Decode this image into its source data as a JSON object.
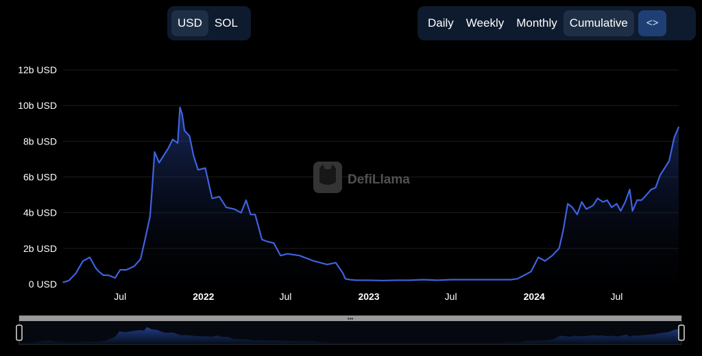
{
  "currency_toggle": {
    "options": [
      "USD",
      "SOL"
    ],
    "selected": "USD"
  },
  "interval_toggle": {
    "options": [
      "Daily",
      "Weekly",
      "Monthly",
      "Cumulative"
    ],
    "selected": "Cumulative",
    "embed_icon": "code-icon",
    "embed_label": "<>"
  },
  "watermark": {
    "text": "DefiLlama",
    "icon": "llama-logo-icon"
  },
  "colors": {
    "line": "#3f63e0",
    "accent": "#1f3f74",
    "background": "#000000"
  },
  "chart_data": {
    "type": "area",
    "ylim": [
      0,
      12
    ],
    "y_unit": "b USD",
    "y_tick_values": [
      0,
      2,
      4,
      6,
      8,
      10,
      12
    ],
    "y_tick_labels": [
      "0 USD",
      "2b USD",
      "4b USD",
      "6b USD",
      "8b USD",
      "10b USD",
      "12b USD"
    ],
    "x_tick_labels": [
      "Jul",
      "2022",
      "Jul",
      "2023",
      "Jul",
      "2024",
      "Jul"
    ],
    "x_tick_dates": [
      "2021-07-01",
      "2022-01-01",
      "2022-07-01",
      "2023-01-01",
      "2023-07-01",
      "2024-01-01",
      "2024-07-01"
    ],
    "x_bold_ticks": [
      "2022",
      "2023",
      "2024"
    ],
    "xlim": [
      "2021-02-25",
      "2024-11-15"
    ],
    "grid": true,
    "series": [
      {
        "x": [
          "2021-02-25",
          "2021-03-10",
          "2021-03-25",
          "2021-04-10",
          "2021-04-25",
          "2021-05-08",
          "2021-05-15",
          "2021-05-25",
          "2021-06-05",
          "2021-06-20",
          "2021-07-01",
          "2021-07-15",
          "2021-08-01",
          "2021-08-15",
          "2021-08-25",
          "2021-09-05",
          "2021-09-10",
          "2021-09-15",
          "2021-09-25",
          "2021-10-05",
          "2021-10-15",
          "2021-10-25",
          "2021-11-05",
          "2021-11-10",
          "2021-11-15",
          "2021-11-20",
          "2021-12-01",
          "2021-12-10",
          "2021-12-20",
          "2022-01-05",
          "2022-01-20",
          "2022-02-05",
          "2022-02-20",
          "2022-03-10",
          "2022-03-25",
          "2022-04-05",
          "2022-04-15",
          "2022-04-25",
          "2022-05-10",
          "2022-05-20",
          "2022-06-05",
          "2022-06-20",
          "2022-07-05",
          "2022-08-01",
          "2022-09-01",
          "2022-10-01",
          "2022-10-20",
          "2022-11-05",
          "2022-11-10",
          "2022-11-20",
          "2022-12-05",
          "2023-01-01",
          "2023-02-01",
          "2023-03-01",
          "2023-04-01",
          "2023-05-01",
          "2023-06-01",
          "2023-07-01",
          "2023-08-01",
          "2023-09-01",
          "2023-10-01",
          "2023-10-20",
          "2023-11-10",
          "2023-11-25",
          "2023-12-10",
          "2023-12-25",
          "2024-01-10",
          "2024-01-25",
          "2024-02-10",
          "2024-02-25",
          "2024-03-05",
          "2024-03-15",
          "2024-03-25",
          "2024-04-05",
          "2024-04-15",
          "2024-04-25",
          "2024-05-10",
          "2024-05-20",
          "2024-06-01",
          "2024-06-10",
          "2024-06-20",
          "2024-07-01",
          "2024-07-10",
          "2024-07-20",
          "2024-07-30",
          "2024-08-05",
          "2024-08-15",
          "2024-08-25",
          "2024-09-05",
          "2024-09-15",
          "2024-09-25",
          "2024-10-05",
          "2024-10-15",
          "2024-10-25",
          "2024-11-05",
          "2024-11-15"
        ],
        "y": [
          0.1,
          0.2,
          0.6,
          1.3,
          1.5,
          0.9,
          0.7,
          0.5,
          0.5,
          0.35,
          0.8,
          0.8,
          1.0,
          1.4,
          2.5,
          3.8,
          5.5,
          7.4,
          6.8,
          7.2,
          7.6,
          8.1,
          7.9,
          9.9,
          9.5,
          8.6,
          8.3,
          7.2,
          6.4,
          6.5,
          4.8,
          4.9,
          4.3,
          4.2,
          4.0,
          4.7,
          3.9,
          3.9,
          2.5,
          2.4,
          2.3,
          1.6,
          1.7,
          1.6,
          1.3,
          1.1,
          1.2,
          0.6,
          0.3,
          0.25,
          0.22,
          0.22,
          0.2,
          0.22,
          0.22,
          0.25,
          0.22,
          0.25,
          0.25,
          0.25,
          0.25,
          0.25,
          0.25,
          0.3,
          0.5,
          0.7,
          1.5,
          1.3,
          1.6,
          2.0,
          3.0,
          4.5,
          4.3,
          3.9,
          4.6,
          4.2,
          4.4,
          4.8,
          4.6,
          4.7,
          4.3,
          4.5,
          4.1,
          4.6,
          5.3,
          4.1,
          4.7,
          4.7,
          5.0,
          5.3,
          5.4,
          6.1,
          6.5,
          6.9,
          8.2,
          8.8
        ]
      }
    ]
  }
}
